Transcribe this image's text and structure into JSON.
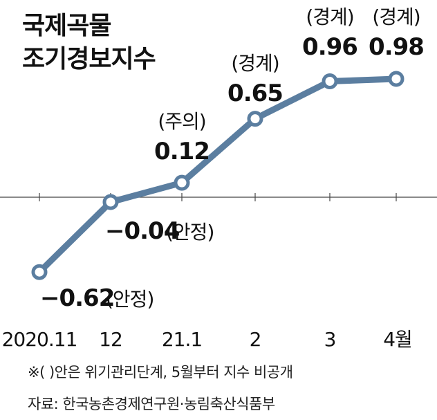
{
  "chart_data": {
    "type": "line",
    "title_lines": [
      "국제곡물",
      "조기경보지수"
    ],
    "categories": [
      "2020.11",
      "12",
      "21.1",
      "2",
      "3",
      "4월"
    ],
    "values": [
      -0.62,
      -0.04,
      0.12,
      0.65,
      0.96,
      0.98
    ],
    "value_labels": [
      "−0.62",
      "−0.04",
      "0.12",
      "0.65",
      "0.96",
      "0.98"
    ],
    "status_labels": [
      "(안정)",
      "(안정)",
      "(주의)",
      "(경계)",
      "(경계)",
      "(경계)"
    ],
    "ylim": [
      -0.62,
      0.98
    ],
    "colors": {
      "line": "#5b7ea0",
      "axis": "#444444",
      "text": "#111111"
    }
  },
  "note": "※(   )안은 위기관리단계, 5월부터 지수 비공개",
  "source": "자료: 한국농촌경제연구원·농림축산식품부"
}
